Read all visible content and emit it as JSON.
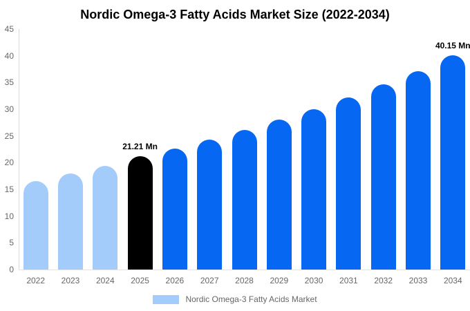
{
  "title": "Nordic Omega-3 Fatty Acids Market Size (2022-2034)",
  "legend": {
    "label": "Nordic Omega-3 Fatty Acids Market",
    "swatch_color": "#a3ccfa"
  },
  "colors": {
    "light_blue": "#a3ccfa",
    "blue": "#0667f2",
    "black": "#000000",
    "axis_line": "#d9d9d9",
    "baseline": "#e4e4e4",
    "tick_text": "#666666"
  },
  "chart_data": {
    "type": "bar",
    "title": "Nordic Omega-3 Fatty Acids Market Size (2022-2034)",
    "categories": [
      "2022",
      "2023",
      "2024",
      "2025",
      "2026",
      "2027",
      "2028",
      "2029",
      "2030",
      "2031",
      "2032",
      "2033",
      "2034"
    ],
    "values": [
      16.6,
      18.0,
      19.4,
      21.21,
      22.6,
      24.3,
      26.1,
      28.0,
      30.0,
      32.2,
      34.6,
      37.1,
      40.15
    ],
    "bar_colors": [
      "light_blue",
      "light_blue",
      "light_blue",
      "black",
      "blue",
      "blue",
      "blue",
      "blue",
      "blue",
      "blue",
      "blue",
      "blue",
      "blue"
    ],
    "data_labels": [
      null,
      null,
      null,
      "21.21 Mn",
      null,
      null,
      null,
      null,
      null,
      null,
      null,
      null,
      "40.15 Mn"
    ],
    "xlabel": "",
    "ylabel": "",
    "ylim": [
      0,
      45
    ],
    "yticks": [
      0,
      5,
      10,
      15,
      20,
      25,
      30,
      35,
      40,
      45
    ],
    "grid": false,
    "legend_position": "bottom",
    "legend_entries": [
      "Nordic Omega-3 Fatty Acids Market"
    ],
    "unit": "Mn"
  }
}
